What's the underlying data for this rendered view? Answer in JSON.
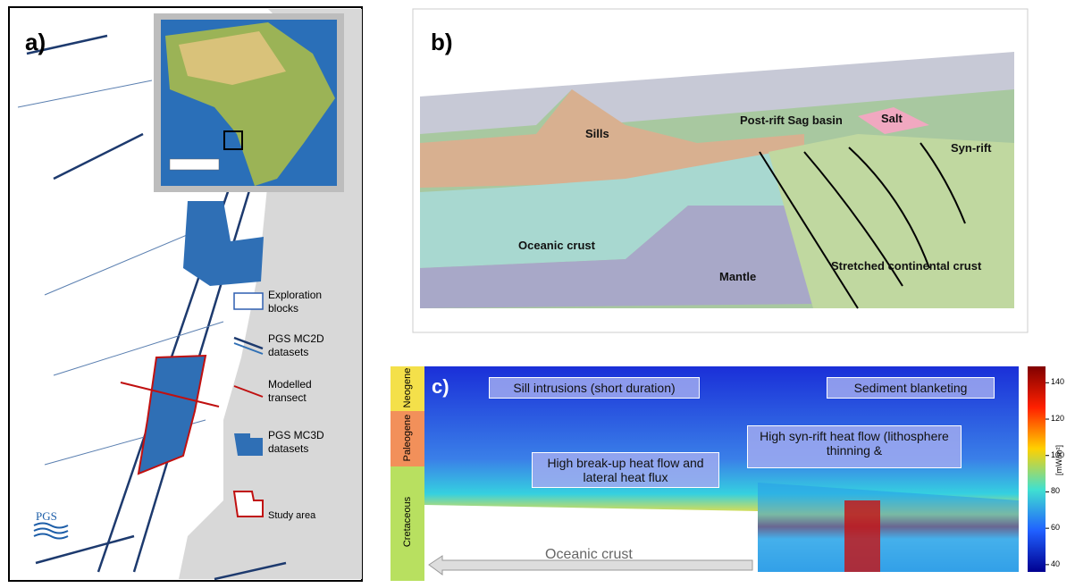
{
  "panel_a": {
    "label": "a)",
    "legend": [
      "Exploration blocks",
      "PGS MC2D datasets",
      "Modelled transect",
      "PGS MC3D datasets",
      "Study area"
    ],
    "logo": "PGS"
  },
  "panel_b": {
    "label": "b)",
    "labels": [
      "Sills",
      "Post-rift Sag basin",
      "Salt",
      "Syn-rift",
      "Oceanic crust",
      "Mantle",
      "Stretched continental crust"
    ]
  },
  "panel_c": {
    "label": "c)",
    "periods": [
      "Neogene",
      "Paleogene",
      "Cretaceous"
    ],
    "annotations": [
      "Sill intrusions (short duration)",
      "Sediment blanketing",
      "High syn-rift heat flow (lithosphere thinning &",
      "High break-up heat flow and lateral heat flux",
      "Oceanic crust"
    ],
    "colorbar": {
      "ticks": [
        40,
        60,
        80,
        100,
        120,
        140
      ],
      "lim": [
        36,
        149
      ],
      "unit": "[mW/m²]"
    }
  }
}
